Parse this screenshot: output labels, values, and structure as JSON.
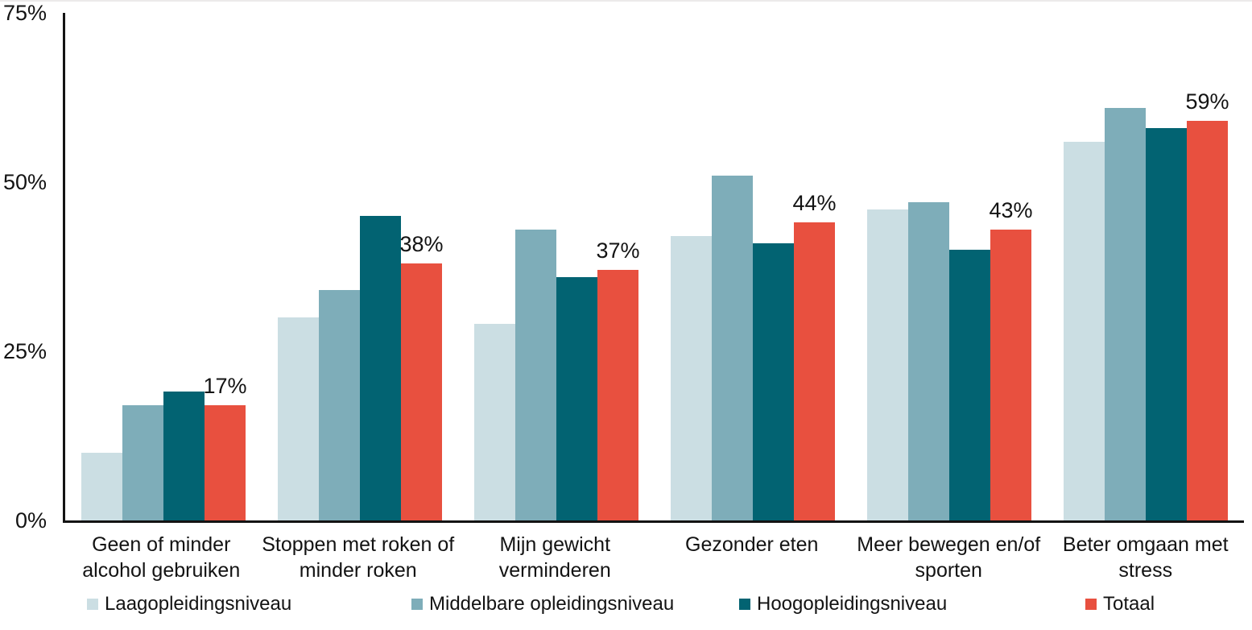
{
  "chart_data": {
    "type": "bar",
    "title": "",
    "xlabel": "",
    "ylabel": "",
    "ylim": [
      0,
      75
    ],
    "grid": false,
    "legend_position": "bottom",
    "axis_color": "#131313",
    "text_color": "#131313",
    "yticks": [
      {
        "value": 0,
        "label": "0%"
      },
      {
        "value": 25,
        "label": "25%"
      },
      {
        "value": 50,
        "label": "50%"
      },
      {
        "value": 75,
        "label": "75%"
      }
    ],
    "categories": [
      "Geen of minder alcohol gebruiken",
      "Stoppen met roken of minder roken",
      "Mijn gewicht verminderen",
      "Gezonder eten",
      "Meer bewegen en/of sporten",
      "Beter omgaan met stress"
    ],
    "categories_lines": [
      [
        "Geen of minder",
        "alcohol gebruiken"
      ],
      [
        "Stoppen met roken of",
        "minder roken"
      ],
      [
        "Mijn gewicht",
        "verminderen"
      ],
      [
        "Gezonder eten"
      ],
      [
        "Meer bewegen en/of",
        "sporten"
      ],
      [
        "Beter omgaan met",
        "stress"
      ]
    ],
    "series": [
      {
        "name": "Laagopleidingsniveau",
        "color": "#cbdee3",
        "values": [
          10,
          30,
          29,
          42,
          46,
          56
        ]
      },
      {
        "name": "Middelbare opleidingsniveau",
        "color": "#7eadb9",
        "values": [
          17,
          34,
          43,
          51,
          47,
          61
        ]
      },
      {
        "name": "Hoogopleidingsniveau",
        "color": "#026372",
        "values": [
          19,
          45,
          36,
          41,
          40,
          58
        ]
      },
      {
        "name": "Totaal",
        "color": "#e8503f",
        "values": [
          17,
          38,
          37,
          44,
          43,
          59
        ]
      }
    ],
    "data_labels": {
      "series": "Totaal",
      "labels": [
        "17%",
        "38%",
        "37%",
        "44%",
        "43%",
        "59%"
      ]
    }
  }
}
